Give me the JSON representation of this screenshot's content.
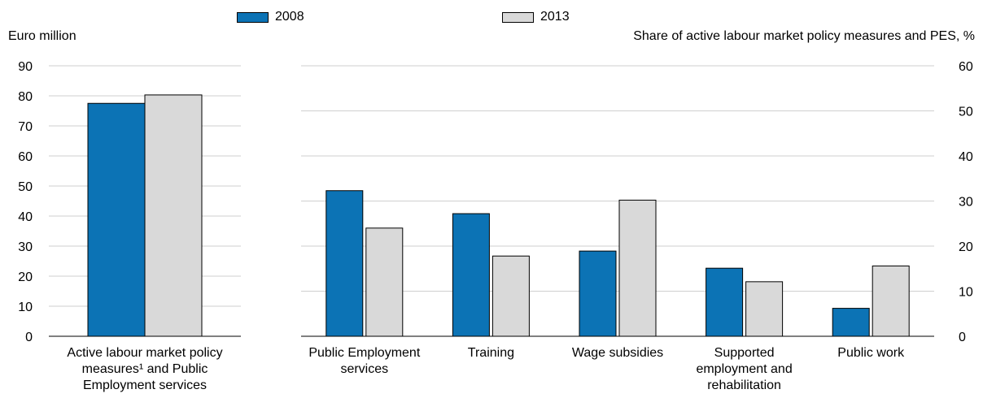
{
  "legend": {
    "items": [
      {
        "label": "2008",
        "color": "#0c73b5"
      },
      {
        "label": "2013",
        "color": "#d9d9d9"
      }
    ]
  },
  "left_axis_title": "Euro million",
  "right_axis_title": "Share of active labour market policy measures and PES, %",
  "chart_data": [
    {
      "type": "bar",
      "ylabel": "Euro million",
      "ylim": [
        0,
        90
      ],
      "yticks": [
        0,
        10,
        20,
        30,
        40,
        50,
        60,
        70,
        80,
        90
      ],
      "grid": true,
      "categories": [
        [
          "Active labour market policy",
          "measures¹ and Public",
          "Employment services"
        ]
      ],
      "series": [
        {
          "name": "2008",
          "values": [
            77.5
          ]
        },
        {
          "name": "2013",
          "values": [
            80.3
          ]
        }
      ]
    },
    {
      "type": "bar",
      "ylabel": "Share of active labour market policy measures and PES, %",
      "ylim": [
        0,
        60
      ],
      "yticks": [
        0,
        10,
        20,
        30,
        40,
        50,
        60
      ],
      "grid": true,
      "categories": [
        [
          "Public Employment",
          "services"
        ],
        [
          "Training"
        ],
        [
          "Wage subsidies"
        ],
        [
          "Supported",
          "employment and",
          "rehabilitation"
        ],
        [
          "Public work"
        ]
      ],
      "series": [
        {
          "name": "2008",
          "values": [
            32.3,
            27.2,
            18.9,
            15.1,
            6.2
          ]
        },
        {
          "name": "2013",
          "values": [
            24.0,
            17.8,
            30.2,
            12.1,
            15.6
          ]
        }
      ]
    }
  ]
}
